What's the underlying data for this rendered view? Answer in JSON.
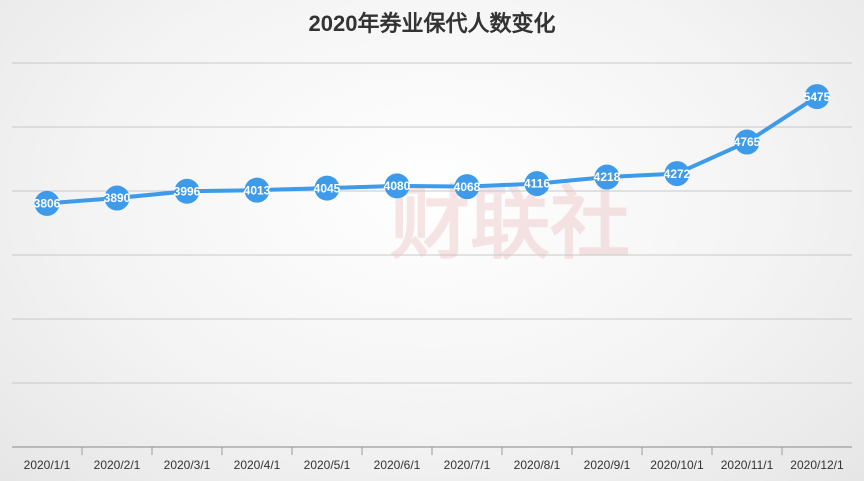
{
  "chart_data": {
    "type": "line",
    "title": "2020年券业保代人数变化",
    "watermark": "财联社",
    "categories": [
      "2020/1/1",
      "2020/2/1",
      "2020/3/1",
      "2020/4/1",
      "2020/5/1",
      "2020/6/1",
      "2020/7/1",
      "2020/8/1",
      "2020/9/1",
      "2020/10/1",
      "2020/11/1",
      "2020/12/1"
    ],
    "values": [
      3806,
      3890,
      3996,
      4013,
      4045,
      4080,
      4068,
      4116,
      4218,
      4272,
      4765,
      5475
    ],
    "color": "#3d9be9",
    "ylim": [
      0,
      6000
    ],
    "yticks": [
      0,
      1000,
      2000,
      3000,
      4000,
      5000,
      6000
    ],
    "grid": true,
    "data_labels": true
  }
}
